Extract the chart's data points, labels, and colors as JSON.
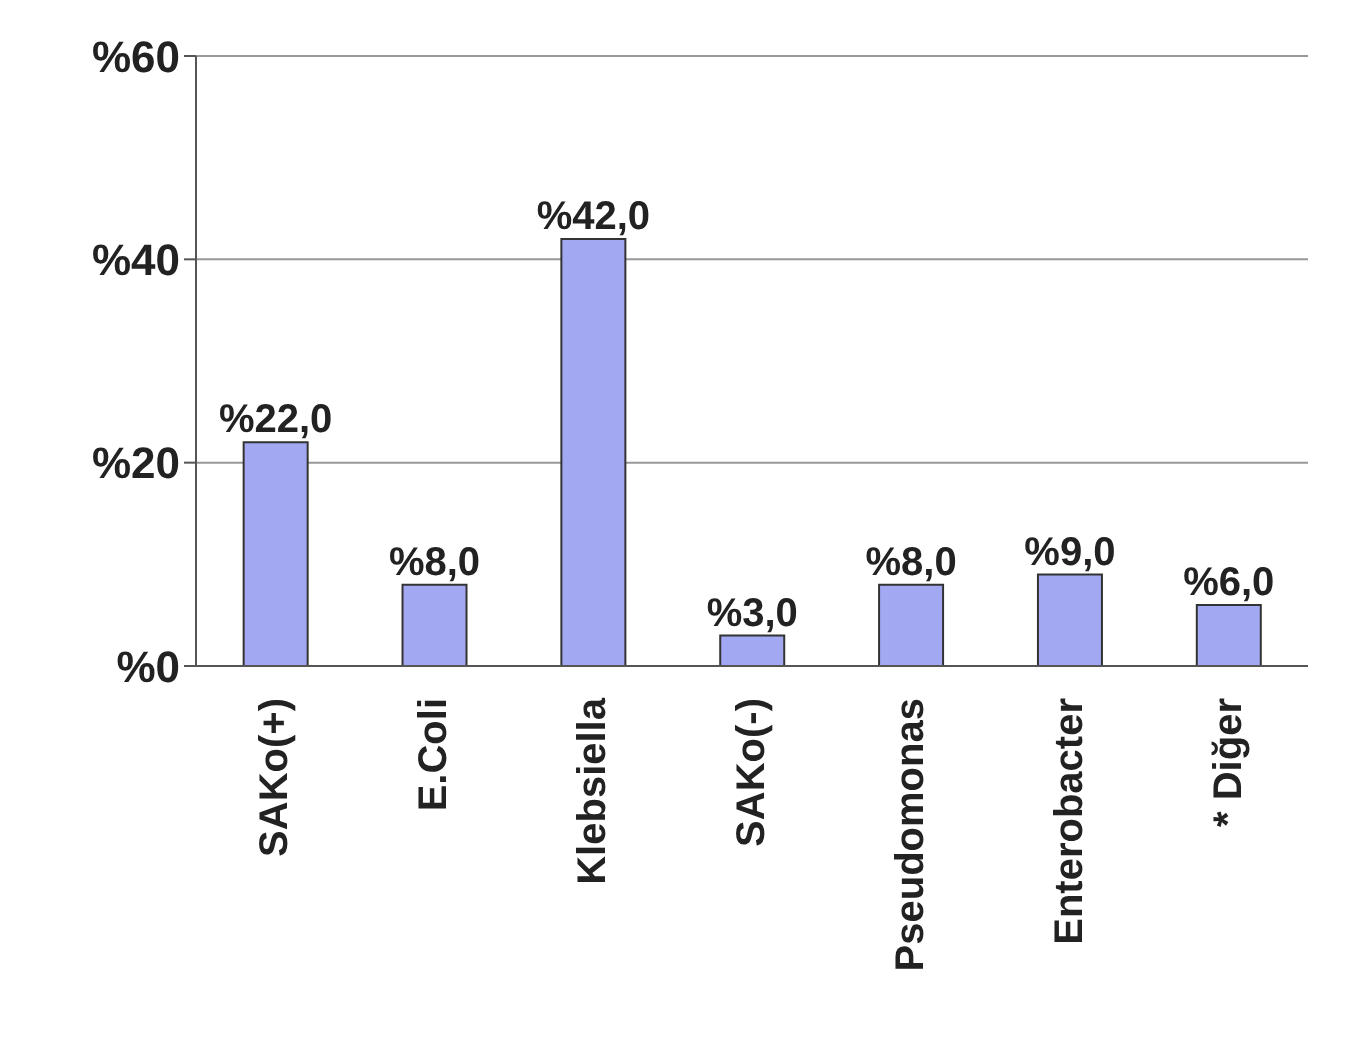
{
  "chart_data": {
    "type": "bar",
    "categories": [
      "SAKo(+)",
      "E.Coli",
      "Klebsiella",
      "SAKo(-)",
      "Pseudomonas",
      "Enterobacter",
      "* Diğer"
    ],
    "values": [
      22,
      8,
      42,
      3,
      8,
      9,
      6
    ],
    "value_labels": [
      "%22,0",
      "%8,0",
      "%42,0",
      "%3,0",
      "%8,0",
      "%9,0",
      "%6,0"
    ],
    "color": "#a3a8f2",
    "ylim": [
      0,
      60
    ],
    "yticks": [
      {
        "value": 0,
        "label": "%0"
      },
      {
        "value": 20,
        "label": "%20"
      },
      {
        "value": 40,
        "label": "%40"
      },
      {
        "value": 60,
        "label": "%60"
      }
    ],
    "grid": "y"
  }
}
